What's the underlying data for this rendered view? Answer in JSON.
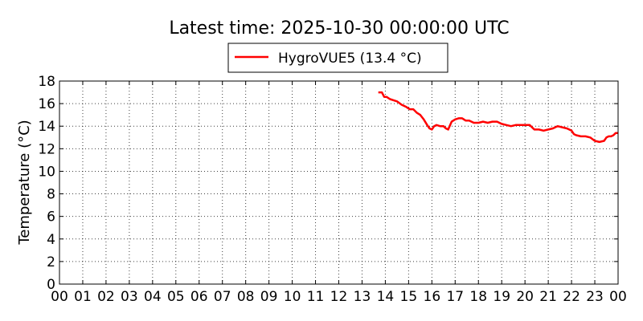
{
  "chart_data": {
    "type": "line",
    "title": "Latest time: 2025-10-30 00:00:00 UTC",
    "ylabel": "Temperature (°C)",
    "xlabel": "",
    "xlim": [
      0,
      24
    ],
    "ylim": [
      0,
      18
    ],
    "x_tick_labels": [
      "00",
      "01",
      "02",
      "03",
      "04",
      "05",
      "06",
      "07",
      "08",
      "09",
      "10",
      "11",
      "12",
      "13",
      "14",
      "15",
      "16",
      "17",
      "18",
      "19",
      "20",
      "21",
      "22",
      "23",
      "00"
    ],
    "y_ticks": [
      0,
      2,
      4,
      6,
      8,
      10,
      12,
      14,
      16,
      18
    ],
    "grid": true,
    "legend_position": "top-center",
    "series": [
      {
        "name": "HygroVUE5 (13.4 °C)",
        "color": "#ff0000",
        "x": [
          13.7,
          13.85,
          13.95,
          14.05,
          14.2,
          14.35,
          14.5,
          14.7,
          14.9,
          15.05,
          15.2,
          15.35,
          15.5,
          15.65,
          15.8,
          15.9,
          16.0,
          16.1,
          16.2,
          16.35,
          16.5,
          16.6,
          16.7,
          16.85,
          17.0,
          17.15,
          17.3,
          17.45,
          17.6,
          17.8,
          18.0,
          18.2,
          18.4,
          18.6,
          18.8,
          19.0,
          19.2,
          19.4,
          19.6,
          19.8,
          20.0,
          20.2,
          20.4,
          20.6,
          20.8,
          21.0,
          21.2,
          21.4,
          21.6,
          21.8,
          22.0,
          22.1,
          22.2,
          22.4,
          22.6,
          22.8,
          23.0,
          23.2,
          23.4,
          23.5,
          23.6,
          23.7,
          23.8,
          23.9,
          24.0
        ],
        "y": [
          17.0,
          17.0,
          16.6,
          16.6,
          16.4,
          16.3,
          16.2,
          15.9,
          15.7,
          15.5,
          15.5,
          15.2,
          15.0,
          14.6,
          14.1,
          13.8,
          13.7,
          14.0,
          14.1,
          14.0,
          14.0,
          13.8,
          13.7,
          14.4,
          14.6,
          14.7,
          14.7,
          14.5,
          14.5,
          14.3,
          14.3,
          14.4,
          14.3,
          14.4,
          14.4,
          14.2,
          14.1,
          14.0,
          14.1,
          14.1,
          14.1,
          14.1,
          13.7,
          13.7,
          13.6,
          13.7,
          13.8,
          14.0,
          13.9,
          13.8,
          13.6,
          13.3,
          13.2,
          13.1,
          13.1,
          13.0,
          12.7,
          12.6,
          12.7,
          13.0,
          13.1,
          13.1,
          13.2,
          13.4,
          13.4
        ]
      }
    ]
  }
}
